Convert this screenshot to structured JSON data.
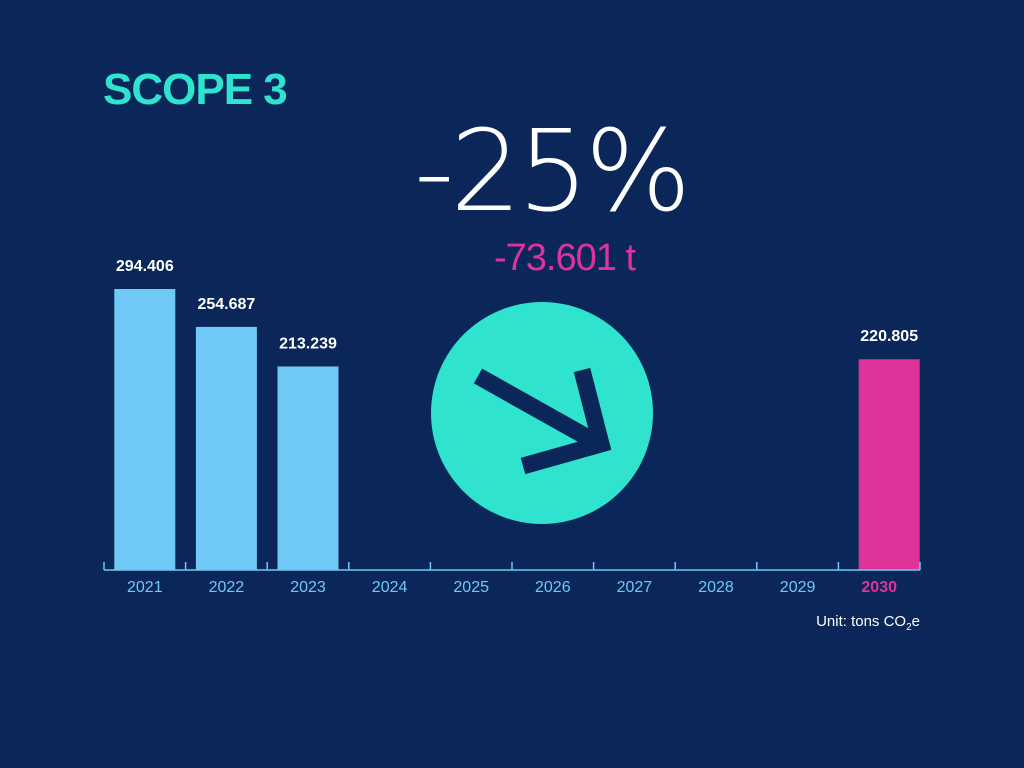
{
  "colors": {
    "background": "#0b2759",
    "title": "#30e3cf",
    "bar_actual": "#6fc8f6",
    "bar_target": "#dd339a",
    "axis": "#6fc8f6",
    "text_light": "#ffffff",
    "badge": "#30e3cf",
    "arrow": "#0b2759"
  },
  "header": {
    "title": "SCOPE 3"
  },
  "summary": {
    "percent_change": "-25%",
    "absolute_change": "-73.601 t"
  },
  "badge": {
    "icon": "arrow-down-right-icon"
  },
  "unit": {
    "prefix": "Unit: tons CO",
    "subscript": "2",
    "suffix": "e"
  },
  "chart_data": {
    "type": "bar",
    "categories": [
      "2021",
      "2022",
      "2023",
      "2024",
      "2025",
      "2026",
      "2027",
      "2028",
      "2029",
      "2030"
    ],
    "values": [
      294406,
      254687,
      213239,
      null,
      null,
      null,
      null,
      null,
      null,
      220805
    ],
    "data_labels": [
      "294.406",
      "254.687",
      "213.239",
      "",
      "",
      "",
      "",
      "",
      "",
      "220.805"
    ],
    "highlight": [
      "",
      "",
      "",
      "",
      "",
      "",
      "",
      "",
      "",
      "target"
    ],
    "ylim": [
      0,
      400000
    ],
    "grid": false,
    "legend": "none"
  }
}
